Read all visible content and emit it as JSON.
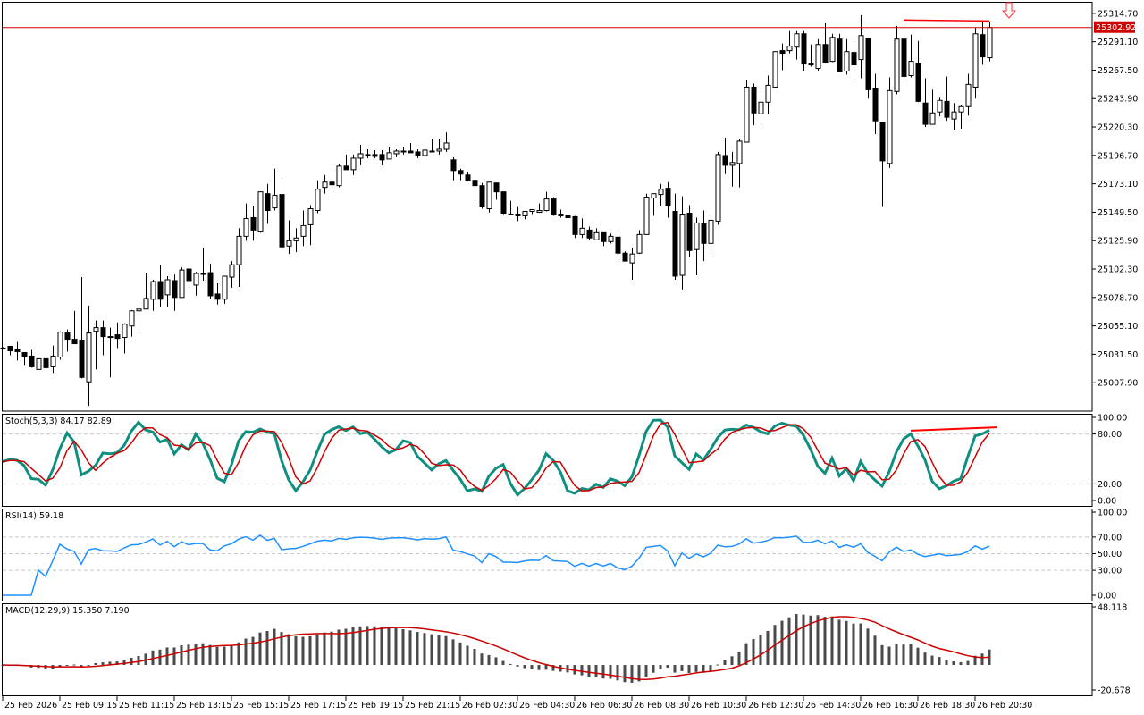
{
  "chart_data": {
    "type": "candlestick",
    "title": "",
    "bid_price": "25302.92",
    "colors": {
      "bull_body": "#ffffff",
      "bear_body": "#000000",
      "bid_line": "#d00000",
      "stoch_main": "#0f8f7f",
      "stoch_signal": "#cc0000",
      "rsi": "#1e90ff",
      "macd_hist": "#4a4a4a",
      "macd_signal": "#cc0000",
      "trendline": "#ff0000"
    },
    "price_axis": {
      "ylim": [
        24984.3,
        25323.5
      ],
      "ticks": [
        "25314.70",
        "25291.10",
        "25267.50",
        "25243.90",
        "25220.30",
        "25196.70",
        "25173.10",
        "25149.50",
        "25125.90",
        "25102.30",
        "25078.70",
        "25055.10",
        "25031.50",
        "25007.90"
      ]
    },
    "time_axis": {
      "labels": [
        "25 Feb 2026",
        "25 Feb 09:15",
        "25 Feb 11:15",
        "25 Feb 13:15",
        "25 Feb 15:15",
        "25 Feb 17:15",
        "25 Feb 19:15",
        "25 Feb 21:15",
        "26 Feb 02:30",
        "26 Feb 04:30",
        "26 Feb 06:30",
        "26 Feb 08:30",
        "26 Feb 10:30",
        "26 Feb 12:30",
        "26 Feb 14:30",
        "26 Feb 16:30",
        "26 Feb 18:30",
        "26 Feb 20:30"
      ],
      "label_every_n_bars": 8
    },
    "ohlc_fields": [
      "open",
      "high",
      "low",
      "close"
    ],
    "ohlc": [
      [
        25036.6,
        25037.4,
        25035.9,
        25036.6
      ],
      [
        25038.1,
        25038.1,
        25030.7,
        25034.4
      ],
      [
        25035.9,
        25041.8,
        25026.3,
        25033.7
      ],
      [
        25032.9,
        25032.9,
        25022.6,
        25029.2
      ],
      [
        25030.0,
        25035.1,
        25020.4,
        25021.1
      ],
      [
        25018.9,
        25027.8,
        25018.9,
        25027.8
      ],
      [
        25027.8,
        25027.8,
        25017.4,
        25020.4
      ],
      [
        25021.1,
        25038.8,
        25016.0,
        25030.0
      ],
      [
        25029.2,
        25050.6,
        25027.0,
        25049.9
      ],
      [
        25049.2,
        25052.1,
        25033.7,
        25044.0
      ],
      [
        25044.0,
        25067.6,
        25040.3,
        25040.3
      ],
      [
        25043.3,
        25095.6,
        25011.5,
        25012.3
      ],
      [
        25008.6,
        25072.0,
        24988.7,
        25049.2
      ],
      [
        25050.6,
        25059.5,
        25018.9,
        25053.6
      ],
      [
        25053.6,
        25059.5,
        25030.7,
        25046.2
      ],
      [
        25046.2,
        25053.6,
        25012.3,
        25046.2
      ],
      [
        25047.7,
        25058.0,
        25036.6,
        25044.7
      ],
      [
        25045.5,
        25057.3,
        25032.2,
        25056.5
      ],
      [
        25055.0,
        25068.3,
        25046.2,
        25067.6
      ],
      [
        25067.6,
        25075.0,
        25048.4,
        25069.1
      ],
      [
        25069.1,
        25099.3,
        25069.1,
        25077.9
      ],
      [
        25077.2,
        25093.4,
        25067.6,
        25091.9
      ],
      [
        25091.9,
        25105.9,
        25070.5,
        25077.2
      ],
      [
        25080.9,
        25096.4,
        25070.5,
        25093.4
      ],
      [
        25092.7,
        25097.8,
        25067.6,
        25078.7
      ],
      [
        25078.7,
        25103.7,
        25078.7,
        25101.5
      ],
      [
        25102.3,
        25103.0,
        25086.8,
        25092.7
      ],
      [
        25089.0,
        25100.0,
        25080.1,
        25098.6
      ],
      [
        25098.6,
        25120.0,
        25092.7,
        25098.6
      ],
      [
        25099.3,
        25106.7,
        25077.2,
        25080.1
      ],
      [
        25081.6,
        25090.4,
        25072.8,
        25077.2
      ],
      [
        25077.2,
        25096.4,
        25073.5,
        25096.4
      ],
      [
        25095.6,
        25108.9,
        25086.8,
        25105.9
      ],
      [
        25105.9,
        25136.2,
        25087.5,
        25129.5
      ],
      [
        25129.5,
        25156.8,
        25125.8,
        25144.3
      ],
      [
        25145.0,
        25154.6,
        25125.8,
        25134.7
      ],
      [
        25133.2,
        25166.4,
        25132.5,
        25166.4
      ],
      [
        25164.9,
        25173.0,
        25139.9,
        25150.9
      ],
      [
        25153.1,
        25185.6,
        25150.9,
        25163.5
      ],
      [
        25164.2,
        25177.5,
        25120.7,
        25120.7
      ],
      [
        25121.4,
        25142.8,
        25114.8,
        25125.8
      ],
      [
        25125.8,
        25136.2,
        25116.3,
        25128.1
      ],
      [
        25129.5,
        25150.9,
        25121.4,
        25138.4
      ],
      [
        25139.1,
        25155.4,
        25122.2,
        25152.4
      ],
      [
        25150.9,
        25176.0,
        25148.7,
        25168.6
      ],
      [
        25170.1,
        25180.4,
        25164.9,
        25174.5
      ],
      [
        25174.5,
        25187.1,
        25170.8,
        25172.3
      ],
      [
        25171.6,
        25189.3,
        25170.1,
        25187.8
      ],
      [
        25187.8,
        25197.4,
        25184.8,
        25184.8
      ],
      [
        25184.8,
        25197.4,
        25180.4,
        25194.4
      ],
      [
        25194.4,
        25205.5,
        25188.5,
        25198.1
      ],
      [
        25197.4,
        25201.8,
        25194.4,
        25197.4
      ],
      [
        25197.4,
        25201.1,
        25194.4,
        25195.9
      ],
      [
        25197.4,
        25201.1,
        25188.5,
        25193.0
      ],
      [
        25193.7,
        25203.3,
        25193.7,
        25198.9
      ],
      [
        25198.1,
        25201.8,
        25195.2,
        25200.3
      ],
      [
        25200.3,
        25204.0,
        25197.4,
        25200.3
      ],
      [
        25200.3,
        25207.0,
        25198.9,
        25198.9
      ],
      [
        25199.6,
        25201.8,
        25194.4,
        25196.6
      ],
      [
        25196.6,
        25201.8,
        25196.6,
        25201.1
      ],
      [
        25200.3,
        25210.7,
        25200.3,
        25200.3
      ],
      [
        25200.3,
        25209.9,
        25197.4,
        25201.8
      ],
      [
        25201.8,
        25215.8,
        25199.6,
        25207.0
      ],
      [
        25193.0,
        25195.2,
        25176.0,
        25184.1
      ],
      [
        25184.1,
        25185.6,
        25176.0,
        25181.2
      ],
      [
        25180.4,
        25182.6,
        25175.3,
        25176.0
      ],
      [
        25176.0,
        25176.7,
        25158.3,
        25171.6
      ],
      [
        25171.6,
        25173.8,
        25152.4,
        25153.9
      ],
      [
        25152.4,
        25174.5,
        25149.4,
        25174.5
      ],
      [
        25173.8,
        25173.8,
        25159.8,
        25166.4
      ],
      [
        25166.4,
        25166.4,
        25147.2,
        25148.0
      ],
      [
        25148.0,
        25159.0,
        25148.0,
        25148.0
      ],
      [
        25148.0,
        25153.9,
        25142.1,
        25146.5
      ],
      [
        25146.5,
        25150.2,
        25143.6,
        25150.2
      ],
      [
        25150.2,
        25151.7,
        25147.2,
        25151.7
      ],
      [
        25149.4,
        25156.8,
        25149.4,
        25150.9
      ],
      [
        25150.9,
        25166.4,
        25150.2,
        25160.5
      ],
      [
        25160.5,
        25162.0,
        25146.5,
        25147.2
      ],
      [
        25147.2,
        25151.7,
        25145.0,
        25146.5
      ],
      [
        25146.5,
        25146.5,
        25142.1,
        25145.0
      ],
      [
        25145.8,
        25146.5,
        25128.1,
        25131.0
      ],
      [
        25131.0,
        25144.3,
        25128.1,
        25136.2
      ],
      [
        25134.7,
        25137.6,
        25126.6,
        25128.1
      ],
      [
        25126.6,
        25136.2,
        25126.6,
        25132.5
      ],
      [
        25132.5,
        25132.5,
        25121.4,
        25125.1
      ],
      [
        25125.1,
        25131.8,
        25123.6,
        25129.5
      ],
      [
        25128.8,
        25134.0,
        25109.7,
        25115.5
      ],
      [
        25115.5,
        25117.0,
        25108.9,
        25108.9
      ],
      [
        25107.4,
        25120.0,
        25093.4,
        25114.8
      ],
      [
        25115.5,
        25134.7,
        25114.8,
        25131.0
      ],
      [
        25131.0,
        25164.9,
        25131.0,
        25162.0
      ],
      [
        25161.3,
        25164.9,
        25146.5,
        25164.9
      ],
      [
        25164.2,
        25173.0,
        25154.6,
        25168.6
      ],
      [
        25169.4,
        25174.5,
        25145.0,
        25154.6
      ],
      [
        25150.2,
        25164.9,
        25093.4,
        25096.4
      ],
      [
        25097.1,
        25162.7,
        25085.3,
        25147.2
      ],
      [
        25148.7,
        25155.4,
        25112.6,
        25117.7
      ],
      [
        25118.5,
        25145.0,
        25097.1,
        25140.6
      ],
      [
        25139.9,
        25150.9,
        25108.9,
        25123.6
      ],
      [
        25123.6,
        25145.8,
        25117.0,
        25142.8
      ],
      [
        25142.1,
        25199.6,
        25139.1,
        25197.4
      ],
      [
        25196.6,
        25211.4,
        25181.2,
        25188.5
      ],
      [
        25188.5,
        25199.6,
        25170.8,
        25190.8
      ],
      [
        25190.0,
        25209.9,
        25170.1,
        25208.5
      ],
      [
        25207.7,
        25259.3,
        25207.7,
        25253.4
      ],
      [
        25253.4,
        25256.4,
        25221.7,
        25232.0
      ],
      [
        25231.3,
        25249.8,
        25221.7,
        25240.9
      ],
      [
        25240.9,
        25263.0,
        25230.6,
        25254.9
      ],
      [
        25253.4,
        25282.9,
        25253.4,
        25282.9
      ],
      [
        25283.7,
        25289.6,
        25267.5,
        25281.5
      ],
      [
        25283.7,
        25299.9,
        25281.5,
        25287.4
      ],
      [
        25286.6,
        25299.9,
        25276.3,
        25297.7
      ],
      [
        25297.7,
        25299.9,
        25266.7,
        25272.6
      ],
      [
        25272.6,
        25288.8,
        25270.4,
        25271.9
      ],
      [
        25268.9,
        25293.3,
        25266.7,
        25288.8
      ],
      [
        25288.8,
        25306.5,
        25273.4,
        25274.1
      ],
      [
        25274.8,
        25297.7,
        25274.1,
        25294.7
      ],
      [
        25293.3,
        25297.7,
        25266.0,
        25266.0
      ],
      [
        25266.7,
        25293.3,
        25263.8,
        25282.9
      ],
      [
        25282.2,
        25291.8,
        25260.1,
        25271.9
      ],
      [
        25276.3,
        25313.2,
        25260.8,
        25296.2
      ],
      [
        25294.0,
        25294.0,
        25243.9,
        25251.2
      ],
      [
        25252.0,
        25264.5,
        25214.4,
        25225.4
      ],
      [
        25223.9,
        25223.9,
        25153.9,
        25192.2
      ],
      [
        25190.0,
        25261.5,
        25186.3,
        25250.5
      ],
      [
        25249.8,
        25304.3,
        25247.5,
        25293.3
      ],
      [
        25293.3,
        25308.8,
        25254.9,
        25262.3
      ],
      [
        25263.0,
        25297.0,
        25261.5,
        25274.8
      ],
      [
        25273.4,
        25291.8,
        25240.9,
        25241.6
      ],
      [
        25240.2,
        25260.8,
        25220.3,
        25222.5
      ],
      [
        25222.5,
        25251.2,
        25222.5,
        25232.0
      ],
      [
        25232.8,
        25244.6,
        25229.1,
        25242.4
      ],
      [
        25241.6,
        25262.3,
        25225.4,
        25228.4
      ],
      [
        25226.9,
        25240.2,
        25218.0,
        25232.8
      ],
      [
        25232.8,
        25238.7,
        25218.8,
        25237.2
      ],
      [
        25237.2,
        25264.5,
        25229.8,
        25255.7
      ],
      [
        25253.4,
        25302.9,
        25243.9,
        25297.7
      ],
      [
        25297.0,
        25308.8,
        25271.9,
        25278.5
      ],
      [
        25277.8,
        25307.3,
        25274.8,
        25302.9
      ]
    ],
    "price_trendline": {
      "from_bar": 126,
      "to_bar": 138,
      "from_price": 25308.8,
      "to_price": 25308.0
    },
    "sell_arrow": {
      "after_bar": 138,
      "direction": "down"
    },
    "indicators": {
      "stoch": {
        "label": "Stoch(5,3,3) 84.17 82.89",
        "params": [
          5,
          3,
          3
        ],
        "ylim": [
          0,
          100
        ],
        "levels": [
          20,
          80
        ],
        "ticks": [
          "100.00",
          "80.00",
          "20.00",
          "0.00"
        ],
        "trendline": {
          "from_bar": 127,
          "to_bar": 139,
          "from_value": 84,
          "to_value": 88
        }
      },
      "rsi": {
        "label": "RSI(14) 59.18",
        "period": 14,
        "ylim": [
          0,
          100
        ],
        "levels": [
          30,
          50,
          70
        ],
        "ticks": [
          "100.00",
          "70.00",
          "50.00",
          "30.00",
          "0.00"
        ]
      },
      "macd": {
        "label": "MACD(12,29,9) 15.350 7.190",
        "params": [
          12,
          29,
          9
        ],
        "ylim": [
          -20.678,
          48.118
        ],
        "ticks": [
          "48.118",
          "-20.678"
        ]
      }
    }
  }
}
